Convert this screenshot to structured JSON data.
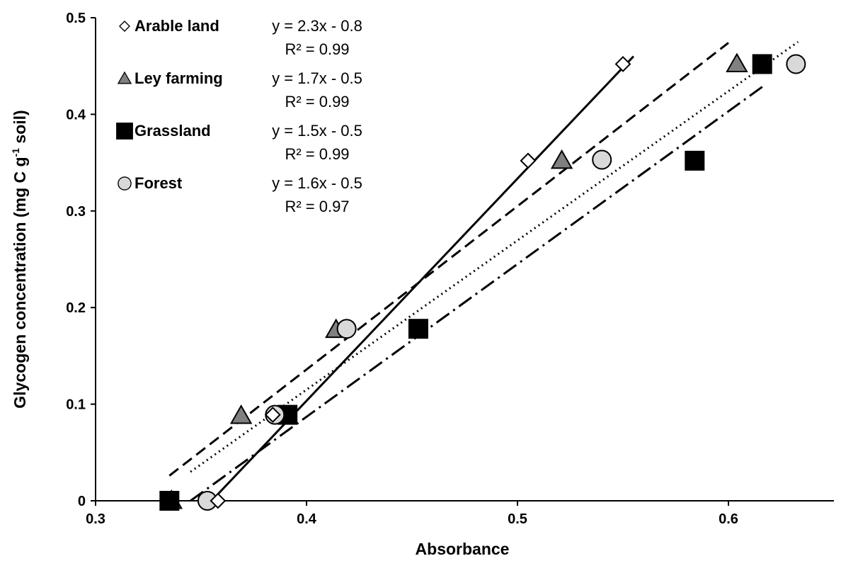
{
  "chart_data": {
    "type": "scatter",
    "xlabel": "Absorbance",
    "ylabel_parts": [
      "Glycogen concentration (mg C g",
      "-1",
      " soil)"
    ],
    "xlim": [
      0.3,
      0.65
    ],
    "ylim": [
      0,
      0.5
    ],
    "xticks": [
      0.3,
      0.4,
      0.5,
      0.6
    ],
    "xtick_labels": [
      "0.3",
      "0.4",
      "0.5",
      "0.6"
    ],
    "yticks": [
      0,
      0.1,
      0.2,
      0.3,
      0.4,
      0.5
    ],
    "ytick_labels": [
      "0",
      "0.1",
      "0.2",
      "0.3",
      "0.4",
      "0.5"
    ],
    "legend_position": "top-left",
    "series": [
      {
        "name": "Arable land",
        "marker": "diamond",
        "fill": "#ffffff",
        "line_style": "solid",
        "equation": "y = 2.3x - 0.8",
        "r2": "R² = 0.99",
        "points": [
          [
            0.358,
            0.0
          ],
          [
            0.384,
            0.089
          ],
          [
            0.505,
            0.352
          ],
          [
            0.55,
            0.452
          ]
        ],
        "trend": [
          [
            0.355,
            0.0
          ],
          [
            0.555,
            0.46
          ]
        ]
      },
      {
        "name": "Ley farming",
        "marker": "triangle",
        "fill": "#808080",
        "line_style": "dashed",
        "equation": "y = 1.7x - 0.5",
        "r2": "R² = 0.99",
        "points": [
          [
            0.336,
            0.0
          ],
          [
            0.369,
            0.088
          ],
          [
            0.414,
            0.177
          ],
          [
            0.521,
            0.352
          ],
          [
            0.604,
            0.452
          ]
        ],
        "trend": [
          [
            0.335,
            0.026
          ],
          [
            0.6,
            0.474
          ]
        ]
      },
      {
        "name": "Grassland",
        "marker": "square",
        "fill": "#000000",
        "line_style": "dash-dot",
        "equation": "y = 1.5x - 0.5",
        "r2": "R² = 0.99",
        "points": [
          [
            0.335,
            0.0
          ],
          [
            0.391,
            0.089
          ],
          [
            0.453,
            0.178
          ],
          [
            0.584,
            0.352
          ],
          [
            0.616,
            0.452
          ]
        ],
        "trend": [
          [
            0.345,
            0.0
          ],
          [
            0.617,
            0.43
          ]
        ]
      },
      {
        "name": "Forest",
        "marker": "circle",
        "fill": "#d9d9d9",
        "line_style": "dotted",
        "equation": "y = 1.6x - 0.5",
        "r2": "R² = 0.97",
        "points": [
          [
            0.353,
            0.0
          ],
          [
            0.385,
            0.089
          ],
          [
            0.419,
            0.178
          ],
          [
            0.54,
            0.353
          ],
          [
            0.632,
            0.452
          ]
        ],
        "trend": [
          [
            0.345,
            0.03
          ],
          [
            0.633,
            0.475
          ]
        ]
      }
    ]
  }
}
